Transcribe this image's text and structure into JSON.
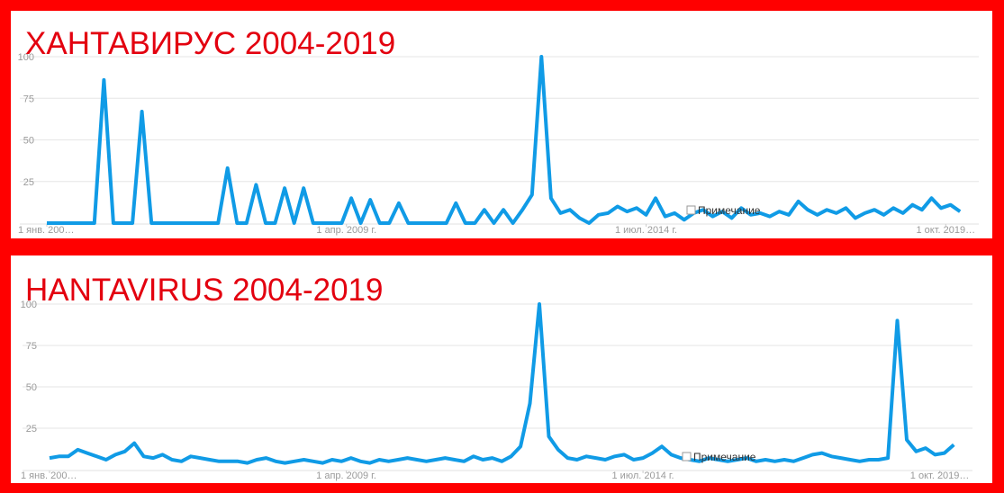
{
  "chart_data": [
    {
      "type": "line",
      "title": "ХАНТАВИРУС 2004-2019",
      "annotation": "Примечание",
      "x": [
        "2004-01",
        "2004-03",
        "2004-05",
        "2004-07",
        "2004-09",
        "2004-11",
        "2005-01",
        "2005-03",
        "2005-05",
        "2005-07",
        "2005-09",
        "2005-11",
        "2006-01",
        "2006-03",
        "2006-05",
        "2006-07",
        "2006-09",
        "2006-11",
        "2007-01",
        "2007-03",
        "2007-05",
        "2007-07",
        "2007-09",
        "2007-11",
        "2008-01",
        "2008-03",
        "2008-05",
        "2008-07",
        "2008-09",
        "2008-11",
        "2009-01",
        "2009-03",
        "2009-05",
        "2009-07",
        "2009-09",
        "2009-11",
        "2010-01",
        "2010-03",
        "2010-05",
        "2010-07",
        "2010-09",
        "2010-11",
        "2011-01",
        "2011-03",
        "2011-05",
        "2011-07",
        "2011-09",
        "2011-11",
        "2012-01",
        "2012-03",
        "2012-05",
        "2012-07",
        "2012-09",
        "2012-11",
        "2013-01",
        "2013-03",
        "2013-05",
        "2013-07",
        "2013-09",
        "2013-11",
        "2014-01",
        "2014-03",
        "2014-05",
        "2014-07",
        "2014-09",
        "2014-11",
        "2015-01",
        "2015-03",
        "2015-05",
        "2015-07",
        "2015-09",
        "2015-11",
        "2016-01",
        "2016-03",
        "2016-05",
        "2016-07",
        "2016-09",
        "2016-11",
        "2017-01",
        "2017-03",
        "2017-05",
        "2017-07",
        "2017-09",
        "2017-11",
        "2018-01",
        "2018-03",
        "2018-05",
        "2018-07",
        "2018-09",
        "2018-11",
        "2019-01",
        "2019-03",
        "2019-05",
        "2019-07",
        "2019-09",
        "2019-11",
        "2020-01"
      ],
      "series": [
        {
          "color": "#109be6",
          "values": [
            0,
            0,
            0,
            0,
            0,
            0,
            86,
            0,
            0,
            0,
            67,
            0,
            0,
            0,
            0,
            0,
            0,
            0,
            0,
            33,
            0,
            0,
            23,
            0,
            0,
            21,
            0,
            21,
            0,
            0,
            0,
            0,
            15,
            0,
            14,
            0,
            0,
            12,
            0,
            0,
            0,
            0,
            0,
            12,
            0,
            0,
            8,
            0,
            8,
            0,
            8,
            17,
            100,
            15,
            6,
            8,
            3,
            0,
            5,
            6,
            10,
            7,
            9,
            5,
            15,
            4,
            6,
            2,
            6,
            8,
            4,
            7,
            3,
            9,
            5,
            6,
            4,
            7,
            5,
            13,
            8,
            5,
            8,
            6,
            9,
            3,
            6,
            8,
            5,
            9,
            6,
            11,
            8,
            15,
            9,
            11,
            7
          ]
        }
      ],
      "xlim": [
        "2004-01",
        "2020-04"
      ],
      "xticks": [
        {
          "value": "2004-01",
          "label": "1 янв. 200…"
        },
        {
          "value": "2009-04",
          "label": "1 апр. 2009 г."
        },
        {
          "value": "2014-07",
          "label": "1 июл. 2014 г."
        },
        {
          "value": "2019-10",
          "label": "1 окт. 2019…"
        }
      ],
      "ylim": [
        0,
        100
      ],
      "yticks": [
        25,
        50,
        75,
        100
      ],
      "grid": true
    },
    {
      "type": "line",
      "title": "HANTAVIRUS 2004-2019",
      "annotation": "Примечание",
      "x": [
        "2004-01",
        "2004-03",
        "2004-05",
        "2004-07",
        "2004-09",
        "2004-11",
        "2005-01",
        "2005-03",
        "2005-05",
        "2005-07",
        "2005-09",
        "2005-11",
        "2006-01",
        "2006-03",
        "2006-05",
        "2006-07",
        "2006-09",
        "2006-11",
        "2007-01",
        "2007-03",
        "2007-05",
        "2007-07",
        "2007-09",
        "2007-11",
        "2008-01",
        "2008-03",
        "2008-05",
        "2008-07",
        "2008-09",
        "2008-11",
        "2009-01",
        "2009-03",
        "2009-05",
        "2009-07",
        "2009-09",
        "2009-11",
        "2010-01",
        "2010-03",
        "2010-05",
        "2010-07",
        "2010-09",
        "2010-11",
        "2011-01",
        "2011-03",
        "2011-05",
        "2011-07",
        "2011-09",
        "2011-11",
        "2012-01",
        "2012-03",
        "2012-05",
        "2012-07",
        "2012-09",
        "2012-11",
        "2013-01",
        "2013-03",
        "2013-05",
        "2013-07",
        "2013-09",
        "2013-11",
        "2014-01",
        "2014-03",
        "2014-05",
        "2014-07",
        "2014-09",
        "2014-11",
        "2015-01",
        "2015-03",
        "2015-05",
        "2015-07",
        "2015-09",
        "2015-11",
        "2016-01",
        "2016-03",
        "2016-05",
        "2016-07",
        "2016-09",
        "2016-11",
        "2017-01",
        "2017-03",
        "2017-05",
        "2017-07",
        "2017-09",
        "2017-11",
        "2018-01",
        "2018-03",
        "2018-05",
        "2018-07",
        "2018-09",
        "2018-11",
        "2019-01",
        "2019-03",
        "2019-05",
        "2019-07",
        "2019-09",
        "2019-11",
        "2020-01"
      ],
      "series": [
        {
          "color": "#109be6",
          "values": [
            7,
            8,
            8,
            12,
            10,
            8,
            6,
            9,
            11,
            16,
            8,
            7,
            9,
            6,
            5,
            8,
            7,
            6,
            5,
            5,
            5,
            4,
            6,
            7,
            5,
            4,
            5,
            6,
            5,
            4,
            6,
            5,
            7,
            5,
            4,
            6,
            5,
            6,
            7,
            6,
            5,
            6,
            7,
            6,
            5,
            8,
            6,
            7,
            5,
            8,
            14,
            40,
            100,
            20,
            12,
            7,
            6,
            8,
            7,
            6,
            8,
            9,
            6,
            7,
            10,
            14,
            9,
            7,
            6,
            5,
            7,
            6,
            5,
            6,
            7,
            5,
            6,
            5,
            6,
            5,
            7,
            9,
            10,
            8,
            7,
            6,
            5,
            6,
            6,
            7,
            90,
            18,
            11,
            13,
            9,
            10,
            15
          ]
        }
      ],
      "xlim": [
        "2004-01",
        "2020-04"
      ],
      "xticks": [
        {
          "value": "2004-01",
          "label": "1 янв. 200…"
        },
        {
          "value": "2009-04",
          "label": "1 апр. 2009 г."
        },
        {
          "value": "2014-07",
          "label": "1 июл. 2014 г."
        },
        {
          "value": "2019-10",
          "label": "1 окт. 2019…"
        }
      ],
      "ylim": [
        0,
        100
      ],
      "yticks": [
        25,
        50,
        75,
        100
      ],
      "grid": true
    }
  ]
}
